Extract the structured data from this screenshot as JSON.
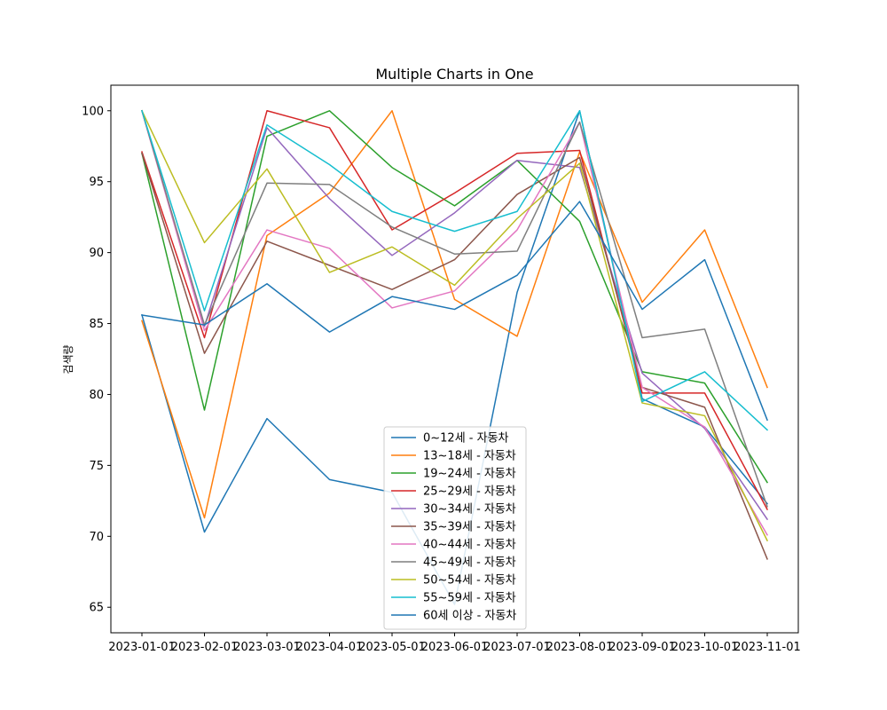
{
  "chart_data": {
    "type": "line",
    "title": "Multiple Charts in One",
    "xlabel": "",
    "ylabel": "검색량",
    "x": [
      "2023-01-01",
      "2023-02-01",
      "2023-03-01",
      "2023-04-01",
      "2023-05-01",
      "2023-06-01",
      "2023-07-01",
      "2023-08-01",
      "2023-09-01",
      "2023-10-01",
      "2023-11-01"
    ],
    "ylim": [
      63.2,
      101.8
    ],
    "yticks": [
      65,
      70,
      75,
      80,
      85,
      90,
      95,
      100
    ],
    "grid": false,
    "legend_position": "lower-center",
    "series": [
      {
        "name": "0~12세 - 자동차",
        "color": "#1f77b4",
        "values": [
          85.6,
          70.3,
          78.3,
          74.0,
          73.1,
          65.2,
          87.2,
          100.0,
          79.7,
          77.7,
          72.3
        ]
      },
      {
        "name": "13~18세 - 자동차",
        "color": "#ff7f0e",
        "values": [
          85.2,
          71.3,
          91.2,
          94.2,
          100.0,
          86.7,
          84.1,
          97.1,
          86.5,
          91.6,
          80.5
        ]
      },
      {
        "name": "19~24세 - 자동차",
        "color": "#2ca02c",
        "values": [
          97.0,
          78.9,
          98.2,
          100.0,
          96.0,
          93.3,
          96.5,
          92.2,
          81.6,
          80.8,
          73.8
        ]
      },
      {
        "name": "25~29세 - 자동차",
        "color": "#d62728",
        "values": [
          97.1,
          84.0,
          100.0,
          98.8,
          91.6,
          94.2,
          97.0,
          97.2,
          80.1,
          80.1,
          71.9
        ]
      },
      {
        "name": "30~34세 - 자동차",
        "color": "#9467bd",
        "values": [
          100.0,
          84.8,
          98.8,
          93.8,
          89.8,
          92.8,
          96.5,
          96.0,
          81.5,
          77.6,
          71.2
        ]
      },
      {
        "name": "35~39세 - 자동차",
        "color": "#8c564b",
        "values": [
          97.0,
          82.9,
          90.8,
          89.1,
          87.4,
          89.5,
          94.1,
          96.7,
          80.5,
          79.1,
          68.4
        ]
      },
      {
        "name": "40~44세 - 자동차",
        "color": "#e377c2",
        "values": [
          100.0,
          84.5,
          91.6,
          90.3,
          86.1,
          87.3,
          91.6,
          99.2,
          80.5,
          77.7,
          70.1
        ]
      },
      {
        "name": "45~49세 - 자동차",
        "color": "#7f7f7f",
        "values": [
          100.0,
          84.9,
          94.9,
          94.8,
          91.8,
          89.9,
          90.1,
          99.2,
          84.0,
          84.6,
          72.1
        ]
      },
      {
        "name": "50~54세 - 자동차",
        "color": "#bcbd22",
        "values": [
          100.0,
          90.7,
          95.9,
          88.6,
          90.4,
          87.7,
          92.4,
          96.3,
          79.4,
          78.5,
          69.7
        ]
      },
      {
        "name": "55~59세 - 자동차",
        "color": "#17becf",
        "values": [
          100.0,
          85.9,
          99.0,
          96.2,
          92.9,
          91.5,
          92.9,
          100.0,
          79.5,
          81.6,
          77.5
        ]
      },
      {
        "name": "60세 이상 - 자동차",
        "color": "#1f77b4",
        "values": [
          85.6,
          84.9,
          87.8,
          84.4,
          86.9,
          86.0,
          88.4,
          93.6,
          86.0,
          89.5,
          78.2
        ]
      }
    ]
  }
}
